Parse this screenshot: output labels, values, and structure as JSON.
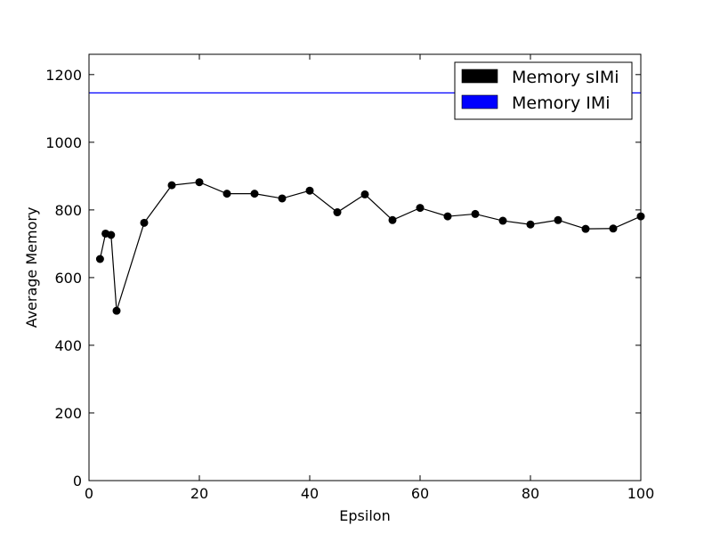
{
  "chart_data": {
    "type": "line",
    "title": "",
    "xlabel": "Epsilon",
    "ylabel": "Average Memory",
    "xlim": [
      0,
      100
    ],
    "ylim": [
      0,
      1260
    ],
    "xticks": [
      0,
      20,
      40,
      60,
      80,
      100
    ],
    "yticks": [
      0,
      200,
      400,
      600,
      800,
      1000,
      1200
    ],
    "grid": false,
    "legend_position": "top-right",
    "series": [
      {
        "name": "Memory sIMi",
        "color": "#000000",
        "marker": "circle",
        "x": [
          2,
          3,
          4,
          5,
          10,
          15,
          20,
          25,
          30,
          35,
          40,
          45,
          50,
          55,
          60,
          65,
          70,
          75,
          80,
          85,
          90,
          95,
          100
        ],
        "y": [
          655,
          730,
          726,
          502,
          762,
          873,
          882,
          848,
          848,
          834,
          857,
          793,
          846,
          770,
          806,
          781,
          788,
          768,
          757,
          770,
          744,
          745,
          781
        ]
      },
      {
        "name": "Memory IMi",
        "color": "#0000ff",
        "marker": "none",
        "constant": 1146
      }
    ]
  }
}
